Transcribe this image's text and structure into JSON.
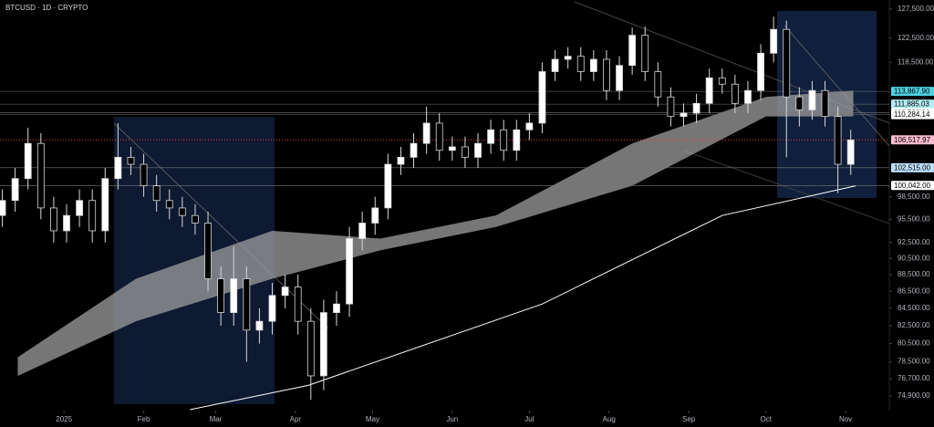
{
  "chart_data": {
    "type": "candlestick",
    "title": "BTCUSD · 1D · CRYPTO",
    "log": true,
    "up_color": "#ffffff",
    "down_color": "#000000",
    "wick_color": "#d8d8d8",
    "xlim": [
      -24.9,
      321
    ],
    "xticks": [
      {
        "value": 0,
        "label": "2025"
      },
      {
        "value": 31,
        "label": "Feb"
      },
      {
        "value": 59,
        "label": "Mar"
      },
      {
        "value": 90,
        "label": "Apr"
      },
      {
        "value": 120,
        "label": "May"
      },
      {
        "value": 151,
        "label": "Jun"
      },
      {
        "value": 181,
        "label": "Jul"
      },
      {
        "value": 212,
        "label": "Aug"
      },
      {
        "value": 243,
        "label": "Sep"
      },
      {
        "value": 273,
        "label": "Oct"
      },
      {
        "value": 304,
        "label": "Nov"
      }
    ],
    "ylim": [
      73410,
      129110
    ],
    "yticks": [
      {
        "value": 127500,
        "label": "127,500.00"
      },
      {
        "value": 122500,
        "label": "122,500.00"
      },
      {
        "value": 118500,
        "label": "118,500.00"
      },
      {
        "value": 98500,
        "label": "98,500.00"
      },
      {
        "value": 95500,
        "label": "95,500.00"
      },
      {
        "value": 92500,
        "label": "92,500.00"
      },
      {
        "value": 90500,
        "label": "90,500.00"
      },
      {
        "value": 88500,
        "label": "88,500.00"
      },
      {
        "value": 86500,
        "label": "86,500.00"
      },
      {
        "value": 84500,
        "label": "84,500.00"
      },
      {
        "value": 82500,
        "label": "82,500.00"
      },
      {
        "value": 80500,
        "label": "80,500.00"
      },
      {
        "value": 78500,
        "label": "78,500.00"
      },
      {
        "value": 76700,
        "label": "76,700.00"
      },
      {
        "value": 74900,
        "label": "74,900.00"
      }
    ],
    "levels": [
      {
        "value": 113867.9,
        "label": "113,867.90",
        "color": "#4dd0e1"
      },
      {
        "value": 111885.03,
        "label": "111,885.03",
        "color": "#b2ebf2"
      },
      {
        "value": 110581.01,
        "label": "110,581.01",
        "color": "#ffffff"
      },
      {
        "value": 110284.14,
        "label": "110,284.14",
        "color": "#ffffff"
      },
      {
        "value": 106517.97,
        "label": "106,517.97",
        "color": "#f8bbd0"
      },
      {
        "value": 102515,
        "label": "102,515.00",
        "color": "#bbdefb"
      },
      {
        "value": 100042,
        "label": "100,042.00",
        "color": "#ffffff"
      }
    ],
    "candles": {
      "x": [
        -24,
        -19,
        -14,
        -9,
        -4,
        1,
        6,
        11,
        16,
        21,
        26,
        31,
        36,
        41,
        46,
        51,
        56,
        61,
        66,
        71,
        76,
        81,
        86,
        91,
        96,
        101,
        106,
        111,
        116,
        121,
        126,
        131,
        136,
        141,
        146,
        151,
        156,
        161,
        166,
        171,
        176,
        181,
        186,
        191,
        196,
        201,
        206,
        211,
        216,
        221,
        226,
        231,
        236,
        241,
        246,
        251,
        256,
        261,
        266,
        271,
        276,
        281,
        286,
        291,
        296,
        301,
        306
      ],
      "open": [
        96000,
        98000,
        101000,
        106000,
        97000,
        94000,
        96000,
        98000,
        94000,
        101000,
        104000,
        103000,
        100000,
        98000,
        97000,
        96000,
        95000,
        88000,
        84000,
        88000,
        82000,
        83000,
        86000,
        87000,
        83000,
        77000,
        84000,
        85000,
        93000,
        95000,
        97000,
        103000,
        104000,
        106000,
        109000,
        105000,
        105500,
        104000,
        106000,
        108000,
        105000,
        108000,
        109000,
        117000,
        119000,
        119500,
        117000,
        119000,
        114000,
        118000,
        123000,
        117000,
        113000,
        110000,
        110500,
        112000,
        116000,
        115000,
        112000,
        114000,
        120000,
        124000,
        113000,
        111000,
        114000,
        110000,
        103000
      ],
      "high": [
        99500,
        102500,
        108300,
        107500,
        98500,
        97500,
        99500,
        99500,
        102500,
        109000,
        105500,
        104500,
        101500,
        99500,
        98500,
        97500,
        96500,
        89500,
        92000,
        89500,
        84500,
        87500,
        88500,
        88500,
        84500,
        85500,
        86500,
        94500,
        96500,
        98500,
        104500,
        105500,
        107500,
        111500,
        110500,
        107000,
        107000,
        107500,
        109500,
        109500,
        109500,
        110500,
        118500,
        120500,
        121000,
        121000,
        120500,
        120500,
        119500,
        124300,
        124500,
        118500,
        114500,
        112000,
        113500,
        117500,
        117500,
        116500,
        115500,
        121500,
        126200,
        125500,
        114500,
        115500,
        115500,
        111500,
        108000
      ],
      "low": [
        94500,
        96500,
        99500,
        95500,
        92500,
        92500,
        94500,
        92500,
        92500,
        99500,
        101500,
        98500,
        96500,
        95500,
        94500,
        93500,
        86500,
        82500,
        82500,
        78500,
        80500,
        81500,
        84500,
        81500,
        74500,
        75500,
        82500,
        83500,
        91500,
        93500,
        95500,
        101500,
        102500,
        104500,
        103500,
        103500,
        102500,
        102500,
        104500,
        103500,
        103500,
        106500,
        107500,
        115500,
        117500,
        115500,
        115500,
        112500,
        112500,
        116500,
        115500,
        111500,
        108500,
        108500,
        109000,
        110500,
        113500,
        110500,
        110500,
        112500,
        118500,
        104000,
        108500,
        109500,
        108500,
        99000,
        101500
      ],
      "close": [
        98000,
        101000,
        106000,
        97000,
        94000,
        96000,
        98000,
        94000,
        101000,
        104000,
        103000,
        100000,
        98000,
        97000,
        96000,
        95000,
        88000,
        84000,
        88000,
        82000,
        83000,
        86000,
        87000,
        83000,
        77000,
        84000,
        85000,
        93000,
        95000,
        97000,
        103000,
        104000,
        106000,
        109000,
        105000,
        105500,
        104000,
        106000,
        108000,
        105000,
        108000,
        109000,
        117000,
        119000,
        119500,
        117000,
        119000,
        114000,
        118000,
        123000,
        117000,
        113000,
        110000,
        110500,
        112000,
        116000,
        115000,
        112000,
        114000,
        120000,
        124000,
        113000,
        111000,
        114000,
        110000,
        103000,
        106500
      ]
    },
    "series": [
      {
        "color": "#ffffff",
        "x": [
          49,
          95,
          186,
          256,
          308
        ],
        "values": [
          73500,
          76000,
          85000,
          96000,
          100000
        ]
      }
    ],
    "band": {
      "color": "#9e9e9e",
      "x": [
        -18,
        28,
        81,
        123,
        168,
        221,
        273,
        307
      ],
      "upper": [
        79000,
        88000,
        94000,
        93000,
        96000,
        106000,
        113000,
        114000
      ],
      "lower": [
        77000,
        83000,
        88000,
        91500,
        94500,
        100000,
        110000,
        110000
      ]
    }
  }
}
